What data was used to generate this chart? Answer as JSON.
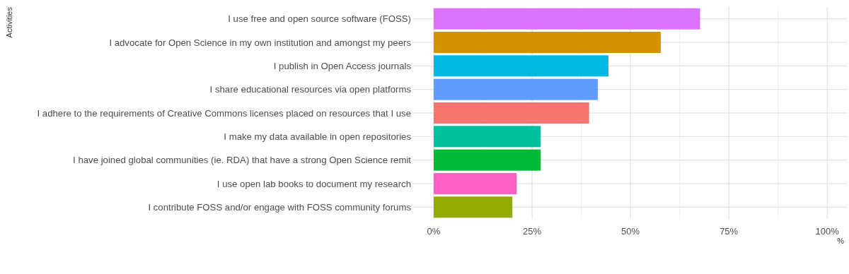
{
  "chart_data": {
    "type": "bar",
    "orientation": "horizontal",
    "ylabel": "Activities",
    "xlabel": "%",
    "categories": [
      "I use free and open source software (FOSS)",
      "I advocate for Open Science in my own institution and amongst my peers",
      "I publish in Open Access journals",
      "I share educational resources via open platforms",
      "I adhere to the requirements of Creative Commons licenses placed on resources that I use",
      "I make my data available in open repositories",
      "I have joined global communities (ie. RDA) that have a strong Open Science remit",
      "I use open lab books to document my research",
      "I contribute FOSS and/or engage with FOSS community forums"
    ],
    "values": [
      67.7,
      57.7,
      44.4,
      41.7,
      39.5,
      27.2,
      27.2,
      21.1,
      20.0
    ],
    "colors": [
      "#db72fb",
      "#d39200",
      "#00b9e3",
      "#619cff",
      "#f8766d",
      "#00c19f",
      "#00ba38",
      "#ff61c3",
      "#93aa00"
    ],
    "xlim": [
      0,
      105
    ],
    "xticks": [
      {
        "value": 0,
        "label": "0%"
      },
      {
        "value": 12.5,
        "label": null
      },
      {
        "value": 25,
        "label": "25%"
      },
      {
        "value": 37.5,
        "label": null
      },
      {
        "value": 50,
        "label": "50%"
      },
      {
        "value": 62.5,
        "label": null
      },
      {
        "value": 75,
        "label": "75%"
      },
      {
        "value": 87.5,
        "label": null
      },
      {
        "value": 100,
        "label": "100%"
      }
    ],
    "grid": true
  }
}
